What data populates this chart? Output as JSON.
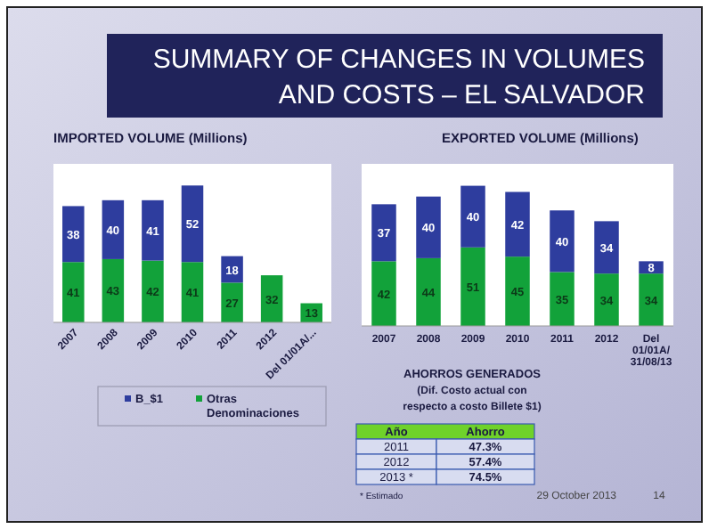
{
  "chart_data": [
    {
      "type": "other",
      "title": "SUMMARY OF CHANGES IN VOLUMES AND COSTS – EL SALVADOR",
      "annotations": [
        "29 October 2013",
        "14"
      ]
    },
    {
      "type": "bar",
      "stacked": true,
      "title": "IMPORTED VOLUME (Millions)",
      "categories": [
        "2007",
        "2008",
        "2009",
        "2010",
        "2011",
        "2012",
        "Del 01/01A/..."
      ],
      "data_labels": true,
      "legend": "bottom",
      "series": [
        {
          "name": "Otras Denominaciones",
          "color": "#12a23a",
          "values": [
            41,
            43,
            42,
            41,
            27,
            32,
            13
          ]
        },
        {
          "name": "B_$1",
          "color": "#2e3d9e",
          "values": [
            38,
            40,
            41,
            52,
            18,
            null,
            null
          ]
        }
      ]
    },
    {
      "type": "bar",
      "stacked": true,
      "title": "EXPORTED  VOLUME (Millions)",
      "categories": [
        "2007",
        "2008",
        "2009",
        "2010",
        "2011",
        "2012",
        "Del 01/01A/ 31/08/13"
      ],
      "data_labels": true,
      "series": [
        {
          "color": "#12a23a",
          "values": [
            42,
            44,
            51,
            45,
            35,
            34,
            34
          ]
        },
        {
          "color": "#2e3d9e",
          "values": [
            37,
            40,
            40,
            42,
            40,
            34,
            8
          ]
        }
      ]
    },
    {
      "type": "other",
      "title": "AHORROS GENERADOS",
      "subtitle": "(Dif. Costo actual con respecto a costo Billete $1)",
      "xlabel": "Año",
      "ylabel": "Ahorro",
      "categories": [
        "2011",
        "2012",
        "2013 *"
      ],
      "value_labels": [
        "47.3%",
        "57.4%",
        "74.5%"
      ],
      "annotations": [
        "* Estimado"
      ]
    }
  ]
}
